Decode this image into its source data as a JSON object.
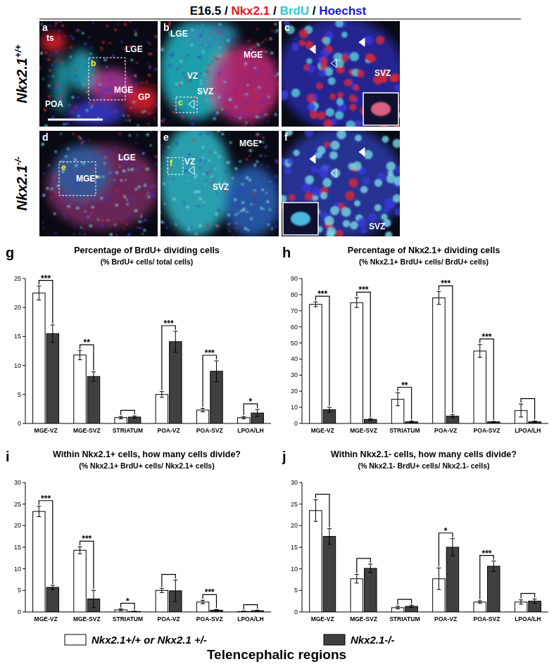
{
  "figure": {
    "header": [
      {
        "text": "E16.5 / ",
        "color": "#000000"
      },
      {
        "text": "Nkx2.1",
        "color": "#e8141c"
      },
      {
        "text": " / ",
        "color": "#000000"
      },
      {
        "text": "BrdU",
        "color": "#2ec8d8"
      },
      {
        "text": " / ",
        "color": "#000000"
      },
      {
        "text": "Hoechst",
        "color": "#1a1ad0"
      }
    ],
    "rows": [
      {
        "gene": "Nkx2.1",
        "genotype": "+/+"
      },
      {
        "gene": "Nkx2.1",
        "genotype": "-/-"
      }
    ],
    "panels": [
      {
        "letter": "a",
        "labels": [
          "ts",
          "LGE",
          "MGE",
          "POA",
          "GP"
        ],
        "inset": "b"
      },
      {
        "letter": "b",
        "labels": [
          "LGE",
          "MGE",
          "VZ",
          "SVZ"
        ],
        "inset": "c"
      },
      {
        "letter": "c",
        "labels": [
          "SVZ"
        ]
      },
      {
        "letter": "d",
        "labels": [
          "LGE",
          "MGE*"
        ],
        "inset": "e"
      },
      {
        "letter": "e",
        "labels": [
          "MGE*",
          "VZ",
          "SVZ"
        ],
        "inset": "f"
      },
      {
        "letter": "f",
        "labels": [
          "SVZ"
        ]
      }
    ],
    "xlabel": "Telencephalic regions"
  },
  "chart_data": [
    {
      "type": "bar",
      "panel": "g",
      "title": "Percentage of BrdU+ dividing cells",
      "subtitle": "(% BrdU+ cells/ total cells)",
      "categories": [
        "MGE-VZ",
        "MGE-SVZ",
        "STRIATUM",
        "POA-VZ",
        "POA-SVZ",
        "LPOA/LH"
      ],
      "series": [
        {
          "name": "Nkx2.1+/+ or Nkx2.1 +/-",
          "color": "#ffffff",
          "values": [
            22.5,
            11.8,
            1.0,
            5.0,
            2.3,
            1.0
          ],
          "errors": [
            1.2,
            0.8,
            0.2,
            0.5,
            0.3,
            0.2
          ]
        },
        {
          "name": "Nkx2.1-/-",
          "color": "#404040",
          "values": [
            15.5,
            8.1,
            1.1,
            14.1,
            9.0,
            1.8
          ],
          "errors": [
            1.5,
            0.8,
            0.2,
            1.8,
            1.8,
            0.6
          ]
        }
      ],
      "significance": [
        "***",
        "**",
        null,
        "***",
        "***",
        "*"
      ],
      "ylim": [
        0,
        25
      ],
      "yticks": [
        0,
        5,
        10,
        15,
        20,
        25
      ]
    },
    {
      "type": "bar",
      "panel": "h",
      "title": "Percentage of Nkx2.1+ dividing cells",
      "subtitle": "(% Nkx2.1+ BrdU+ cells/ BrdU+ cells)",
      "categories": [
        "MGE-VZ",
        "MGE-SVZ",
        "STRIATUM",
        "POA-VZ",
        "POA-SVZ",
        "LPOA/LH"
      ],
      "series": [
        {
          "color": "#ffffff",
          "values": [
            74,
            75,
            15,
            78,
            45,
            8
          ],
          "errors": [
            1.5,
            3,
            4,
            4,
            4,
            4
          ]
        },
        {
          "color": "#404040",
          "values": [
            8.5,
            2.5,
            1,
            4.5,
            1,
            1
          ],
          "errors": [
            1.5,
            0.5,
            0.5,
            1,
            0.3,
            0.5
          ]
        }
      ],
      "significance": [
        "***",
        "***",
        "**",
        "***",
        "***",
        null
      ],
      "ylim": [
        0,
        90
      ],
      "yticks": [
        0,
        10,
        20,
        30,
        40,
        50,
        60,
        70,
        80,
        90
      ]
    },
    {
      "type": "bar",
      "panel": "i",
      "title": "Within Nkx2.1+ cells, how many cells divide?",
      "subtitle": "(% Nkx2.1+ BrdU+ cells/ Nkx2.1+ cells)",
      "categories": [
        "MGE-VZ",
        "MGE-SVZ",
        "STRIATUM",
        "POA-VZ",
        "POA-SVZ",
        "LPOA/LH"
      ],
      "series": [
        {
          "color": "#ffffff",
          "values": [
            23.3,
            14.3,
            0.5,
            5.0,
            2.3,
            0.1
          ],
          "errors": [
            1.2,
            0.8,
            0.2,
            0.5,
            0.4,
            0.1
          ]
        },
        {
          "color": "#404040",
          "values": [
            5.7,
            3.0,
            0.1,
            4.9,
            0.4,
            0.3
          ],
          "errors": [
            0.5,
            2.0,
            0.1,
            2.5,
            0.2,
            0.1
          ]
        }
      ],
      "significance": [
        "***",
        "***",
        "*",
        null,
        "***",
        null
      ],
      "ylim": [
        0,
        30
      ],
      "yticks": [
        0,
        5,
        10,
        15,
        20,
        25,
        30
      ]
    },
    {
      "type": "bar",
      "panel": "j",
      "title": "Within Nkx2.1- cells, how many cells divide?",
      "subtitle": "(% Nkx2.1- BrdU+ cells/ Nkx2.1- cells)",
      "categories": [
        "MGE-VZ",
        "MGE-SVZ",
        "STRIATUM",
        "POA-VZ",
        "POA-SVZ",
        "LPOA/LH"
      ],
      "series": [
        {
          "color": "#ffffff",
          "values": [
            23.5,
            7.7,
            1.0,
            7.7,
            2.3,
            2.3
          ],
          "errors": [
            2.5,
            1.0,
            0.3,
            2.5,
            0.3,
            0.5
          ]
        },
        {
          "color": "#404040",
          "values": [
            17.5,
            10.1,
            1.3,
            15.0,
            10.6,
            2.5
          ],
          "errors": [
            1.8,
            1.0,
            0.3,
            2.0,
            1.2,
            0.5
          ]
        }
      ],
      "significance": [
        null,
        null,
        null,
        "*",
        "***",
        null
      ],
      "ylim": [
        0,
        30
      ],
      "yticks": [
        0,
        5,
        10,
        15,
        20,
        25,
        30
      ]
    }
  ]
}
